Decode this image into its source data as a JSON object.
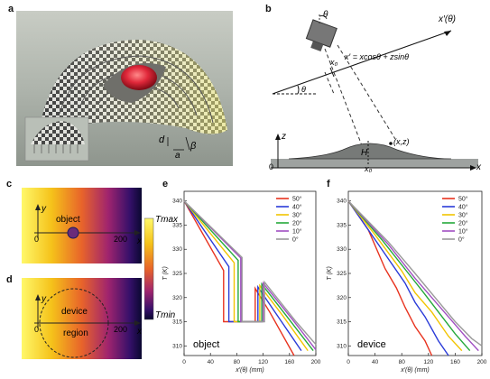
{
  "panels": {
    "a": {
      "letter": "a",
      "d_label": "d",
      "a_label": "a",
      "beta_label": "β"
    },
    "b": {
      "letter": "b",
      "theta_top": "θ",
      "xprime_axis": "x′(θ)",
      "x0_label": "x₀",
      "eq": "x′ = xcosθ + zsinθ",
      "theta_left": "θ",
      "z_axis": "z",
      "x_axis": "x",
      "origin": "0",
      "H_label": "H",
      "xz_label": "(x,z)",
      "x0_bottom": "x₀"
    },
    "c": {
      "letter": "c",
      "y_label": "y",
      "x_label": "x",
      "tick0": "0",
      "tick200": "200",
      "object_label": "object",
      "tmax": "Tmax",
      "tmin": "Tmin"
    },
    "d": {
      "letter": "d",
      "y_label": "y",
      "x_label": "x",
      "tick0": "0",
      "tick200": "200",
      "device_label": "device",
      "region_label": "region"
    },
    "e": {
      "letter": "e",
      "inset_label": "object"
    },
    "f": {
      "letter": "f",
      "inset_label": "device"
    }
  },
  "chart_data": [
    {
      "panel": "e",
      "type": "line",
      "xlabel": "x′(θ) (mm)",
      "ylabel": "T (K)",
      "xlim": [
        0,
        200
      ],
      "ylim": [
        308,
        342
      ],
      "xticks": [
        0,
        40,
        80,
        120,
        160,
        200
      ],
      "yticks": [
        310,
        315,
        320,
        325,
        330,
        335,
        340
      ],
      "grid": false,
      "legend_position": "top-right",
      "series": [
        {
          "name": "50°",
          "color": "#e8321e",
          "points": [
            [
              0,
              340
            ],
            [
              60,
              325.6
            ],
            [
              60,
              315
            ],
            [
              108,
              315
            ],
            [
              108,
              321.9
            ],
            [
              130,
              317
            ],
            [
              167,
              308
            ]
          ]
        },
        {
          "name": "40°",
          "color": "#2a3bd8",
          "points": [
            [
              0,
              340
            ],
            [
              68,
              326.4
            ],
            [
              68,
              315
            ],
            [
              112,
              315
            ],
            [
              112,
              322.2
            ],
            [
              140,
              316.6
            ],
            [
              178,
              309
            ]
          ]
        },
        {
          "name": "30°",
          "color": "#f2c400",
          "points": [
            [
              0,
              340
            ],
            [
              76,
              327.2
            ],
            [
              76,
              315
            ],
            [
              115,
              315
            ],
            [
              115,
              322.5
            ],
            [
              150,
              316.2
            ],
            [
              188,
              309
            ]
          ]
        },
        {
          "name": "20°",
          "color": "#25a83a",
          "points": [
            [
              0,
              340
            ],
            [
              82,
              327.7
            ],
            [
              82,
              315
            ],
            [
              118,
              315
            ],
            [
              118,
              322.8
            ],
            [
              160,
              315.4
            ],
            [
              196,
              309
            ]
          ]
        },
        {
          "name": "10°",
          "color": "#a04fc2",
          "points": [
            [
              0,
              340
            ],
            [
              86,
              328.2
            ],
            [
              86,
              315
            ],
            [
              120,
              315
            ],
            [
              120,
              323
            ],
            [
              165,
              315.4
            ],
            [
              200,
              309.2
            ]
          ]
        },
        {
          "name": "0°",
          "color": "#9a9a9a",
          "points": [
            [
              0,
              340
            ],
            [
              88,
              328.3
            ],
            [
              88,
              315
            ],
            [
              122,
              315
            ],
            [
              122,
              323.2
            ],
            [
              170,
              315
            ],
            [
              200,
              310.3
            ]
          ]
        }
      ]
    },
    {
      "panel": "f",
      "type": "line",
      "xlabel": "x′(θ) (mm)",
      "ylabel": "T (K)",
      "xlim": [
        0,
        200
      ],
      "ylim": [
        308,
        342
      ],
      "xticks": [
        0,
        40,
        80,
        120,
        160,
        200
      ],
      "yticks": [
        310,
        315,
        320,
        325,
        330,
        335,
        340
      ],
      "grid": false,
      "legend_position": "top-right",
      "series": [
        {
          "name": "50°",
          "color": "#e8321e",
          "points": [
            [
              0,
              340
            ],
            [
              30,
              334
            ],
            [
              55,
              326
            ],
            [
              72,
              322
            ],
            [
              85,
              318
            ],
            [
              100,
              314
            ],
            [
              115,
              311
            ],
            [
              125,
              308
            ]
          ]
        },
        {
          "name": "40°",
          "color": "#2a3bd8",
          "points": [
            [
              0,
              340
            ],
            [
              40,
              332
            ],
            [
              70,
              326
            ],
            [
              85,
              323
            ],
            [
              100,
              319
            ],
            [
              115,
              316
            ],
            [
              135,
              311
            ],
            [
              150,
              308
            ]
          ]
        },
        {
          "name": "30°",
          "color": "#f2c400",
          "points": [
            [
              0,
              340
            ],
            [
              40,
              333
            ],
            [
              80,
              325.5
            ],
            [
              100,
              321
            ],
            [
              125,
              317
            ],
            [
              150,
              312
            ],
            [
              170,
              309
            ]
          ]
        },
        {
          "name": "20°",
          "color": "#25a83a",
          "points": [
            [
              0,
              340
            ],
            [
              50,
              332
            ],
            [
              90,
              325
            ],
            [
              110,
              321.5
            ],
            [
              135,
              317
            ],
            [
              160,
              312.5
            ],
            [
              182,
              309
            ]
          ]
        },
        {
          "name": "10°",
          "color": "#a04fc2",
          "points": [
            [
              0,
              340
            ],
            [
              60,
              331
            ],
            [
              100,
              324
            ],
            [
              125,
              320
            ],
            [
              150,
              316
            ],
            [
              175,
              312
            ],
            [
              195,
              309
            ]
          ]
        },
        {
          "name": "0°",
          "color": "#9a9a9a",
          "points": [
            [
              0,
              340
            ],
            [
              60,
              331.5
            ],
            [
              100,
              325
            ],
            [
              130,
              320
            ],
            [
              160,
              315
            ],
            [
              185,
              311.5
            ],
            [
              200,
              310
            ]
          ]
        }
      ]
    }
  ]
}
